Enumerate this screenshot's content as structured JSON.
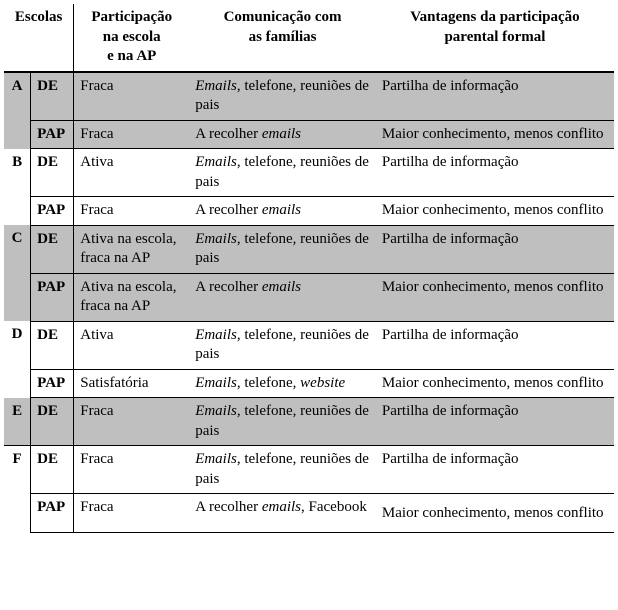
{
  "headers": {
    "escolas": "Escolas",
    "participacao_l1": "Participação",
    "participacao_l2": "na escola",
    "participacao_l3": "e na AP",
    "comunicacao_l1": "Comunicação com",
    "comunicacao_l2": "as famílias",
    "vantagens_l1": "Vantagens da participação",
    "vantagens_l2": "parental formal"
  },
  "rows": {
    "A": {
      "letter": "A",
      "DE": {
        "role": "DE",
        "part": "Fraca",
        "comm_pre": "Emails",
        "comm_post": ", telefone, reuniões de pais",
        "adv": "Partilha de informação"
      },
      "PAP": {
        "role": "PAP",
        "part": "Fraca",
        "comm_pre": "A recolher ",
        "comm_em": "emails",
        "adv": "Maior conhecimento, menos conflito"
      }
    },
    "B": {
      "letter": "B",
      "DE": {
        "role": "DE",
        "part": "Ativa",
        "comm_pre": "Emails",
        "comm_post": ", telefone, reuniões de pais",
        "adv": "Partilha de informação"
      },
      "PAP": {
        "role": "PAP",
        "part": "Fraca",
        "comm_pre": "A recolher ",
        "comm_em": "emails",
        "adv": "Maior conhecimento, menos conflito"
      }
    },
    "C": {
      "letter": "C",
      "DE": {
        "role": "DE",
        "part": "Ativa na escola, fraca na AP",
        "comm_pre": "Emails",
        "comm_post": ", telefone, reuniões de pais",
        "adv": "Partilha de informação"
      },
      "PAP": {
        "role": "PAP",
        "part": "Ativa na escola, fraca na AP",
        "comm_pre": "A recolher ",
        "comm_em": "emails",
        "adv": "Maior conhecimento, menos conflito"
      }
    },
    "D": {
      "letter": "D",
      "DE": {
        "role": "DE",
        "part": "Ativa",
        "comm_pre": "Emails",
        "comm_post": ", telefone, reuniões de pais",
        "adv": "Partilha de informação"
      },
      "PAP": {
        "role": "PAP",
        "part": "Satisfatória",
        "comm_pre": "Emails",
        "comm_post": ", telefone, ",
        "comm_em2": "website",
        "adv": "Maior conhecimento, menos conflito"
      }
    },
    "E": {
      "letter": "E",
      "DE": {
        "role": "DE",
        "part": "Fraca",
        "comm_pre": "Emails",
        "comm_post": ", telefone, reuniões de pais",
        "adv": "Partilha de informação"
      }
    },
    "F": {
      "letter": "F",
      "DE": {
        "role": "DE",
        "part": "Fraca",
        "comm_pre": "Emails",
        "comm_post": ", telefone, reuniões de pais",
        "adv": "Partilha de informação"
      },
      "PAP": {
        "role": "PAP",
        "part": "Fraca",
        "comm_pre": "A recolher ",
        "comm_em": "emails",
        "comm_post2": ", Facebook",
        "adv": "Maior conhecimento, menos conflito"
      }
    }
  },
  "colors": {
    "shade": "#bfbfbf",
    "border": "#000000",
    "background": "#ffffff",
    "text": "#000000"
  },
  "typography": {
    "font_family": "Times New Roman",
    "body_fontsize_pt": 11,
    "header_weight": "bold"
  }
}
